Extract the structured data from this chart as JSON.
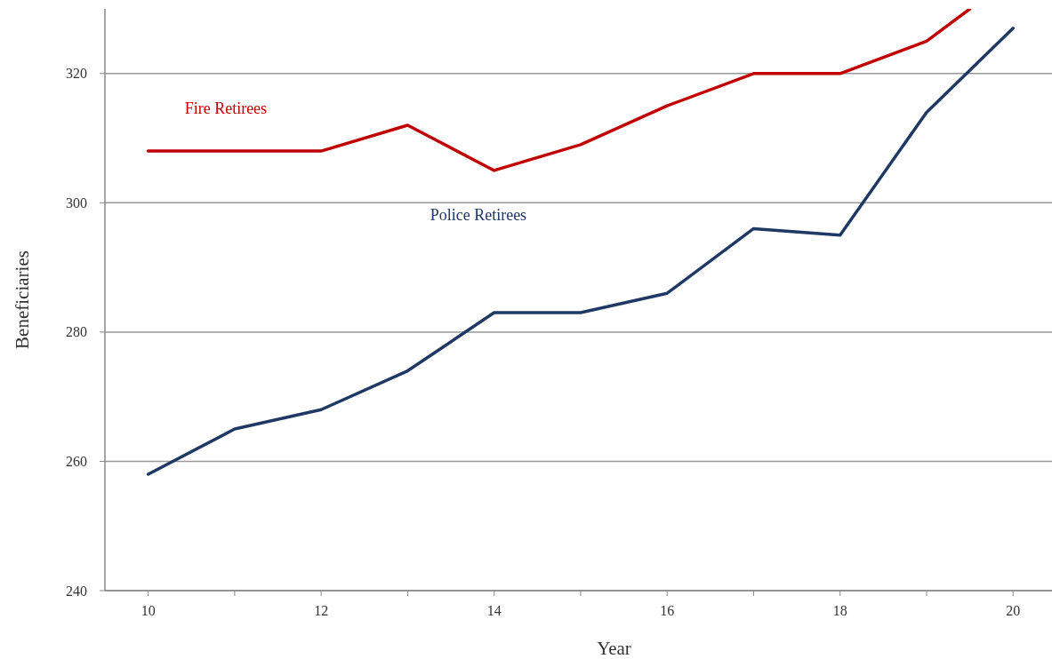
{
  "chart_data": {
    "type": "line",
    "xlabel": "Year",
    "ylabel": "Beneficiaries",
    "xlim": [
      9.5,
      20.45
    ],
    "ylim": [
      240,
      330
    ],
    "xticks": [
      10,
      {
        "value": 11,
        "label": null
      },
      12,
      {
        "value": 13,
        "label": null
      },
      14,
      {
        "value": 15,
        "label": null
      },
      16,
      {
        "value": 17,
        "label": null
      },
      18,
      {
        "value": 19,
        "label": null
      },
      20
    ],
    "yticks": [
      240,
      260,
      280,
      300,
      320
    ],
    "grid": "y",
    "legend": false,
    "series": [
      {
        "name": "Fire Retirees",
        "color": "#c00000",
        "x": [
          10,
          11,
          12,
          13,
          14,
          15,
          16,
          17,
          18,
          19,
          19.5
        ],
        "values": [
          308,
          308,
          308,
          312,
          305,
          309,
          315,
          320,
          320,
          325,
          330
        ]
      },
      {
        "name": "Police Retirees",
        "color": "#1f3864",
        "x": [
          10,
          11,
          12,
          13,
          14,
          15,
          16,
          17,
          18,
          19,
          20
        ],
        "values": [
          258,
          265,
          268,
          274,
          283,
          283,
          286,
          296,
          295,
          314,
          327
        ]
      }
    ]
  }
}
